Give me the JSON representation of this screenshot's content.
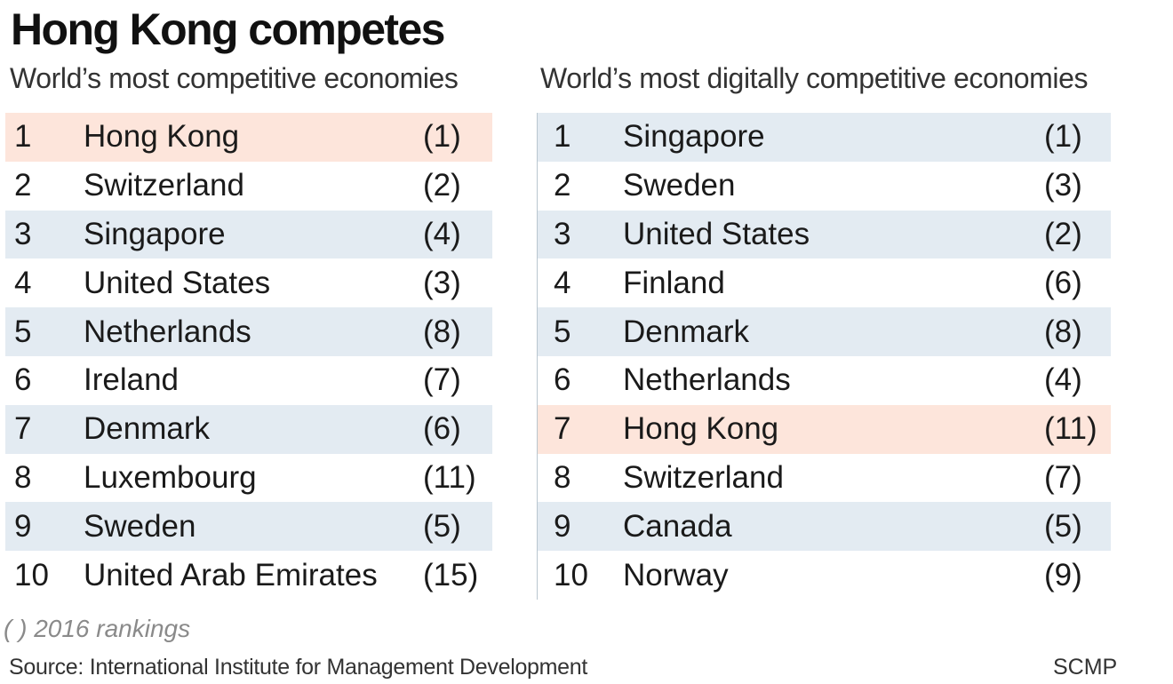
{
  "title": "Hong Kong competes",
  "note": "( ) 2016 rankings",
  "source": "Source: International Institute for Management Development",
  "credit": "SCMP",
  "colors": {
    "highlight": "#fde5db",
    "shade": "#e3ebf2"
  },
  "chart_data": [
    {
      "type": "table",
      "title": "World’s most competitive economies",
      "highlight": "Hong Kong",
      "rows": [
        {
          "rank": "1",
          "name": "Hong Kong",
          "prev": "(1)"
        },
        {
          "rank": "2",
          "name": "Switzerland",
          "prev": "(2)"
        },
        {
          "rank": "3",
          "name": "Singapore",
          "prev": "(4)"
        },
        {
          "rank": "4",
          "name": "United States",
          "prev": "(3)"
        },
        {
          "rank": "5",
          "name": "Netherlands",
          "prev": "(8)"
        },
        {
          "rank": "6",
          "name": "Ireland",
          "prev": "(7)"
        },
        {
          "rank": "7",
          "name": "Denmark",
          "prev": "(6)"
        },
        {
          "rank": "8",
          "name": "Luxembourg",
          "prev": "(11)"
        },
        {
          "rank": "9",
          "name": "Sweden",
          "prev": "(5)"
        },
        {
          "rank": "10",
          "name": "United Arab Emirates",
          "prev": "(15)"
        }
      ]
    },
    {
      "type": "table",
      "title": "World’s most digitally competitive economies",
      "highlight": "Hong Kong",
      "rows": [
        {
          "rank": "1",
          "name": "Singapore",
          "prev": "(1)"
        },
        {
          "rank": "2",
          "name": "Sweden",
          "prev": "(3)"
        },
        {
          "rank": "3",
          "name": "United States",
          "prev": "(2)"
        },
        {
          "rank": "4",
          "name": "Finland",
          "prev": "(6)"
        },
        {
          "rank": "5",
          "name": "Denmark",
          "prev": "(8)"
        },
        {
          "rank": "6",
          "name": "Netherlands",
          "prev": "(4)"
        },
        {
          "rank": "7",
          "name": "Hong Kong",
          "prev": "(11)"
        },
        {
          "rank": "8",
          "name": "Switzerland",
          "prev": "(7)"
        },
        {
          "rank": "9",
          "name": "Canada",
          "prev": "(5)"
        },
        {
          "rank": "10",
          "name": "Norway",
          "prev": "(9)"
        }
      ]
    }
  ]
}
